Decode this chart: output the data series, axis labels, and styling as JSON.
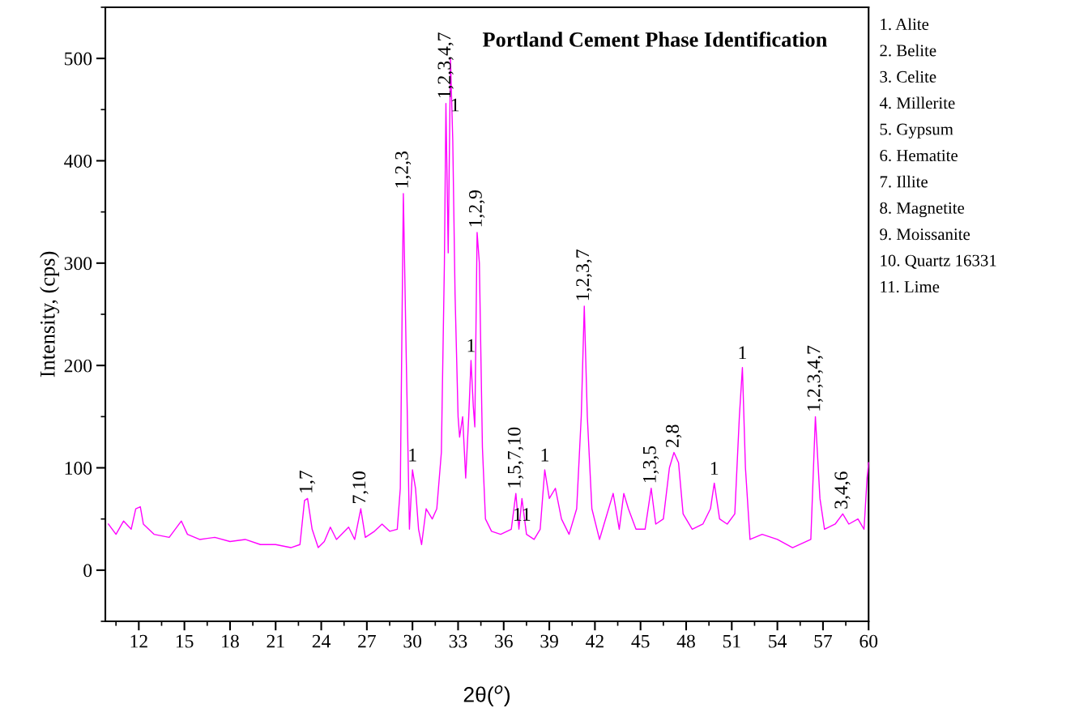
{
  "chart_data": {
    "type": "line",
    "title": "Portland Cement Phase Identification",
    "xlabel": "2θ($^{o}$)",
    "ylabel": "Intensity, (cps)",
    "series": [
      {
        "color": "#ff00ff",
        "x": [
          10.0,
          10.5,
          11.0,
          11.5,
          11.8,
          12.1,
          12.3,
          13,
          14,
          14.8,
          15.2,
          16,
          17,
          18,
          19,
          20,
          21,
          22,
          22.6,
          22.9,
          23.1,
          23.4,
          23.8,
          24.2,
          24.6,
          25,
          25.8,
          26.2,
          26.6,
          26.9,
          27.5,
          28,
          28.5,
          29.0,
          29.2,
          29.4,
          29.6,
          29.8,
          30.0,
          30.2,
          30.4,
          30.6,
          30.9,
          31.3,
          31.6,
          31.9,
          32.1,
          32.2,
          32.35,
          32.5,
          32.65,
          32.8,
          33.0,
          33.1,
          33.3,
          33.5,
          33.7,
          33.85,
          34.0,
          34.1,
          34.25,
          34.4,
          34.6,
          34.8,
          35.2,
          35.8,
          36.5,
          36.8,
          37.0,
          37.2,
          37.5,
          38.0,
          38.4,
          38.7,
          39.0,
          39.4,
          39.8,
          40.3,
          40.8,
          41.1,
          41.3,
          41.5,
          41.8,
          42.3,
          42.6,
          43.2,
          43.6,
          43.9,
          44.2,
          44.7,
          45.3,
          45.7,
          46.0,
          46.5,
          46.9,
          47.2,
          47.5,
          47.8,
          48.4,
          49.1,
          49.6,
          49.85,
          50.2,
          50.7,
          51.2,
          51.5,
          51.7,
          51.9,
          52.2,
          53,
          54,
          55,
          56.2,
          56.5,
          56.8,
          57.1,
          57.8,
          58.3,
          58.7,
          59.3,
          59.7,
          59.9,
          60.0
        ],
        "values": [
          45,
          35,
          48,
          40,
          60,
          62,
          45,
          35,
          32,
          48,
          35,
          30,
          32,
          28,
          30,
          25,
          25,
          22,
          25,
          68,
          70,
          40,
          22,
          28,
          42,
          30,
          42,
          30,
          60,
          32,
          38,
          45,
          38,
          40,
          80,
          368,
          200,
          40,
          98,
          80,
          40,
          25,
          60,
          50,
          60,
          115,
          300,
          456,
          310,
          500,
          420,
          270,
          150,
          130,
          150,
          90,
          150,
          205,
          160,
          140,
          330,
          300,
          120,
          50,
          38,
          35,
          40,
          75,
          40,
          70,
          35,
          30,
          40,
          98,
          70,
          80,
          50,
          35,
          60,
          150,
          258,
          150,
          60,
          30,
          45,
          75,
          40,
          75,
          60,
          40,
          40,
          80,
          45,
          50,
          100,
          115,
          105,
          55,
          40,
          45,
          60,
          85,
          50,
          45,
          55,
          150,
          198,
          100,
          30,
          35,
          30,
          22,
          30,
          150,
          70,
          40,
          45,
          55,
          45,
          50,
          40,
          90,
          105
        ]
      }
    ],
    "xlim": [
      9.8,
      60
    ],
    "ylim": [
      -50,
      550
    ],
    "xticks": [
      12,
      15,
      18,
      21,
      24,
      27,
      30,
      33,
      36,
      39,
      42,
      45,
      48,
      51,
      54,
      57,
      60
    ],
    "yticks": [
      0,
      100,
      200,
      300,
      400,
      500
    ],
    "grid": false,
    "legend": false,
    "annotations": [
      {
        "text": "1,7",
        "x": 23.1,
        "y": 70
      },
      {
        "text": "7,10",
        "x": 26.6,
        "y": 60
      },
      {
        "text": "1,2,3",
        "x": 29.4,
        "y": 368
      },
      {
        "text": "1",
        "x": 30.0,
        "y": 98
      },
      {
        "text": "1,2,3,4,7",
        "x": 32.2,
        "y": 456
      },
      {
        "text": "1",
        "x": 32.8,
        "y": 440
      },
      {
        "text": "1",
        "x": 33.85,
        "y": 205
      },
      {
        "text": "1,2,9",
        "x": 34.25,
        "y": 330
      },
      {
        "text": "1,5,7,10",
        "x": 36.8,
        "y": 75
      },
      {
        "text": "11",
        "x": 37.2,
        "y": 40
      },
      {
        "text": "1",
        "x": 38.7,
        "y": 98
      },
      {
        "text": "1,2,3,7",
        "x": 41.3,
        "y": 258
      },
      {
        "text": "1,3,5",
        "x": 45.7,
        "y": 80
      },
      {
        "text": "2,8",
        "x": 47.2,
        "y": 115
      },
      {
        "text": "1",
        "x": 49.85,
        "y": 85
      },
      {
        "text": "1",
        "x": 51.7,
        "y": 198
      },
      {
        "text": "1,2,3,4,7",
        "x": 56.5,
        "y": 150
      },
      {
        "text": "3,4,6",
        "x": 58.3,
        "y": 55
      },
      "1. Alite",
      "2. Belite",
      "3. Celite",
      "4. Millerite",
      "5. Gypsum",
      "6. Hematite",
      "7. Illite",
      "8. Magnetite",
      "9. Moissanite",
      "10. Quartz 16331",
      "11. Lime"
    ]
  }
}
